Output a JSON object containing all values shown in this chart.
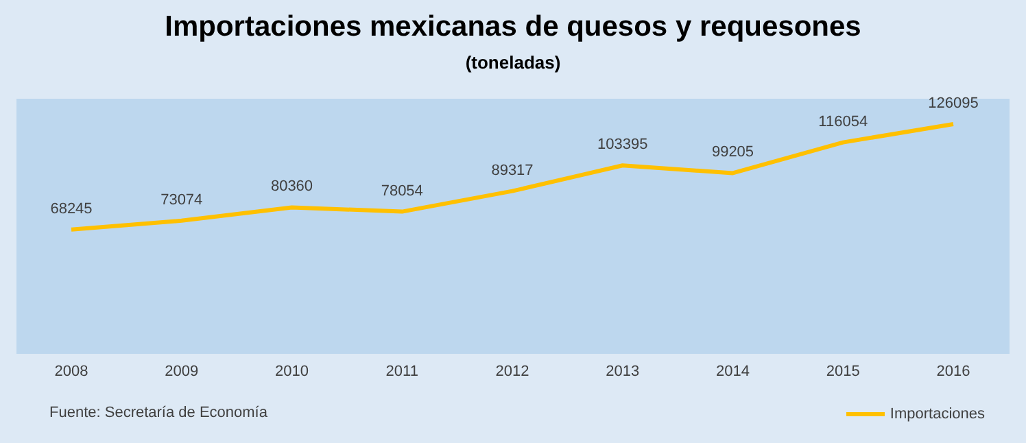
{
  "chart_data": {
    "type": "line",
    "title": "Importaciones mexicanas de quesos y requesones",
    "subtitle": "(toneladas)",
    "categories": [
      "2008",
      "2009",
      "2010",
      "2011",
      "2012",
      "2013",
      "2014",
      "2015",
      "2016"
    ],
    "series": [
      {
        "name": "Importaciones",
        "color": "#ffc000",
        "values": [
          68245,
          73074,
          80360,
          78054,
          89317,
          103395,
          99205,
          116054,
          126095
        ]
      }
    ],
    "ylim": [
      0,
      140000
    ],
    "data_labels": true,
    "legend": "bottom right",
    "marker": "none",
    "annotations": [
      "Fuente: Secretaría de Economía"
    ]
  }
}
